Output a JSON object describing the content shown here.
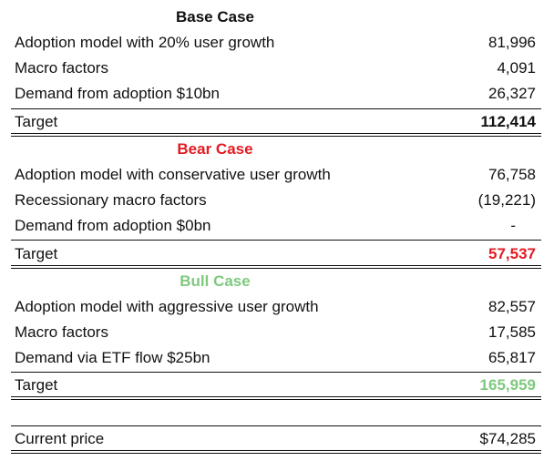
{
  "colors": {
    "text": "#111111",
    "bear": "#e31b23",
    "bull": "#7fc97f"
  },
  "base_case": {
    "title": "Base Case",
    "items": [
      {
        "label": "Adoption model with 20% user growth",
        "value": "81,996"
      },
      {
        "label": "Macro factors",
        "value": "4,091"
      },
      {
        "label": "Demand from adoption $10bn",
        "value": "26,327"
      }
    ],
    "target_label": "Target",
    "target_value": "112,414"
  },
  "bear_case": {
    "title": "Bear Case",
    "items": [
      {
        "label": "Adoption model with conservative user growth",
        "value": "76,758"
      },
      {
        "label": "Recessionary macro factors",
        "value": "(19,221)"
      },
      {
        "label": "Demand from adoption $0bn",
        "value": "-"
      }
    ],
    "target_label": "Target",
    "target_value": "57,537"
  },
  "bull_case": {
    "title": "Bull Case",
    "items": [
      {
        "label": "Adoption model with aggressive user growth",
        "value": "82,557"
      },
      {
        "label": "Macro factors",
        "value": "17,585"
      },
      {
        "label": "Demand via ETF flow $25bn",
        "value": "65,817"
      }
    ],
    "target_label": "Target",
    "target_value": "165,959"
  },
  "current_price": {
    "label": "Current price",
    "value": "$74,285"
  }
}
